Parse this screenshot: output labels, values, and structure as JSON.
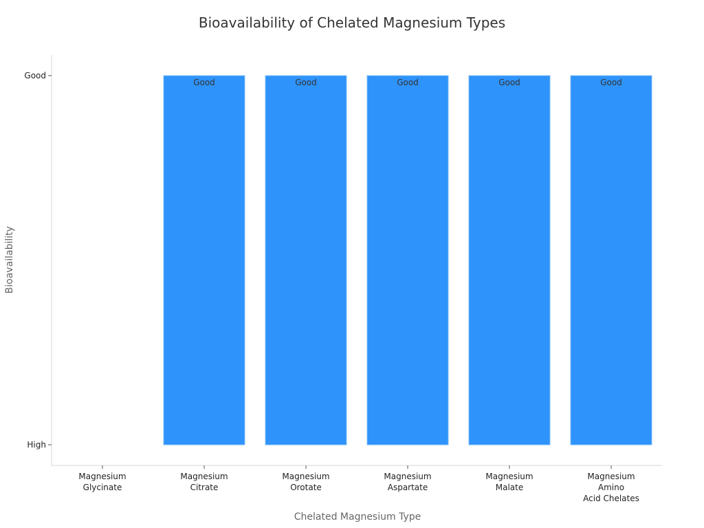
{
  "chart_data": {
    "type": "bar",
    "title": "Bioavailability of Chelated Magnesium Types",
    "xlabel": "Chelated Magnesium Type",
    "ylabel": "Bioavailability",
    "y_categories": [
      "High",
      "Good"
    ],
    "categories": [
      "Magnesium Glycinate",
      "Magnesium Citrate",
      "Magnesium Orotate",
      "Magnesium Aspartate",
      "Magnesium Malate",
      "Magnesium Amino Acid Chelates"
    ],
    "category_lines": [
      [
        "Magnesium",
        "Glycinate"
      ],
      [
        "Magnesium",
        "Citrate"
      ],
      [
        "Magnesium",
        "Orotate"
      ],
      [
        "Magnesium",
        "Aspartate"
      ],
      [
        "Magnesium",
        "Malate"
      ],
      [
        "Magnesium",
        "Amino",
        "Acid Chelates"
      ]
    ],
    "series": [
      {
        "values": [
          "High",
          "Good",
          "Good",
          "Good",
          "Good",
          "Good"
        ],
        "data_labels": [
          "",
          "Good",
          "Good",
          "Good",
          "Good",
          "Good"
        ]
      }
    ],
    "bar_color": "#2e93fa",
    "grid": false,
    "legend": "none"
  }
}
